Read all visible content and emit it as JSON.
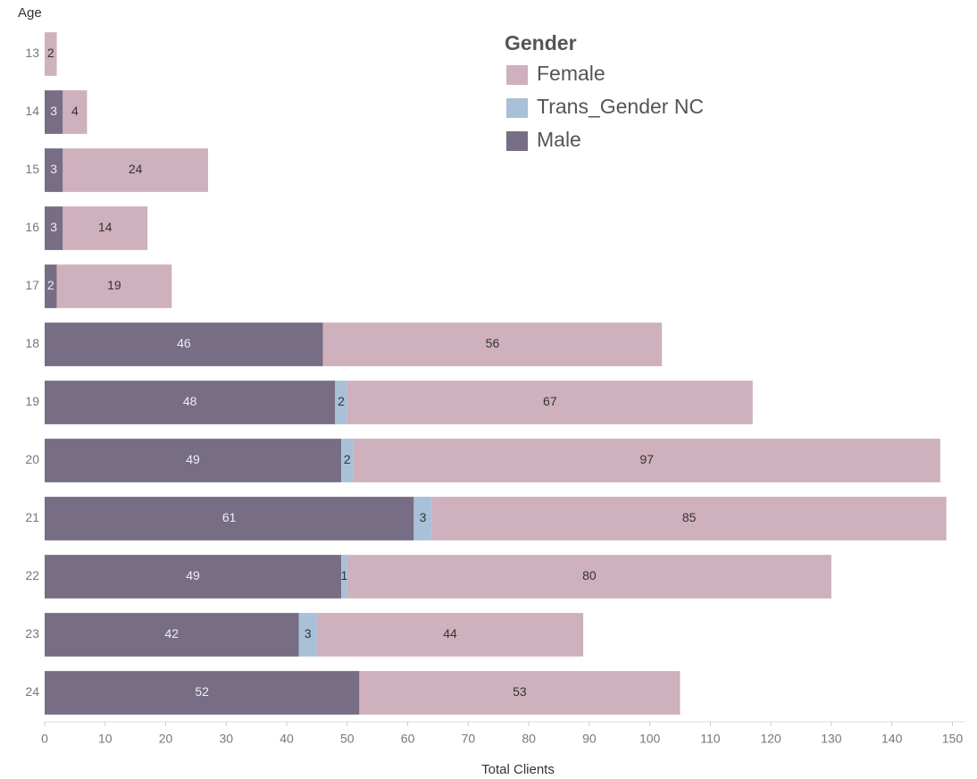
{
  "chart_data": {
    "type": "stacked_barh",
    "y_label": "Age",
    "x_label": "Total Clients",
    "legend_title": "Gender",
    "legend": "upper center",
    "categories": [
      "13",
      "14",
      "15",
      "16",
      "17",
      "18",
      "19",
      "20",
      "21",
      "22",
      "23",
      "24"
    ],
    "series": [
      {
        "name": "Female",
        "color": "#cfb0bd",
        "values": [
          2,
          4,
          24,
          14,
          19,
          56,
          67,
          97,
          85,
          80,
          44,
          53
        ]
      },
      {
        "name": "Trans_Gender NC",
        "color": "#a8c0d8",
        "values": [
          null,
          null,
          null,
          null,
          null,
          null,
          2,
          2,
          3,
          1,
          3,
          null
        ]
      },
      {
        "name": "Male",
        "color": "#776d85",
        "values": [
          null,
          3,
          3,
          3,
          2,
          46,
          48,
          49,
          61,
          49,
          42,
          52
        ]
      }
    ],
    "xlim": [
      0,
      152
    ],
    "xticks": [
      0,
      10,
      20,
      30,
      40,
      50,
      60,
      70,
      80,
      90,
      100,
      110,
      120,
      130,
      140,
      150
    ]
  }
}
